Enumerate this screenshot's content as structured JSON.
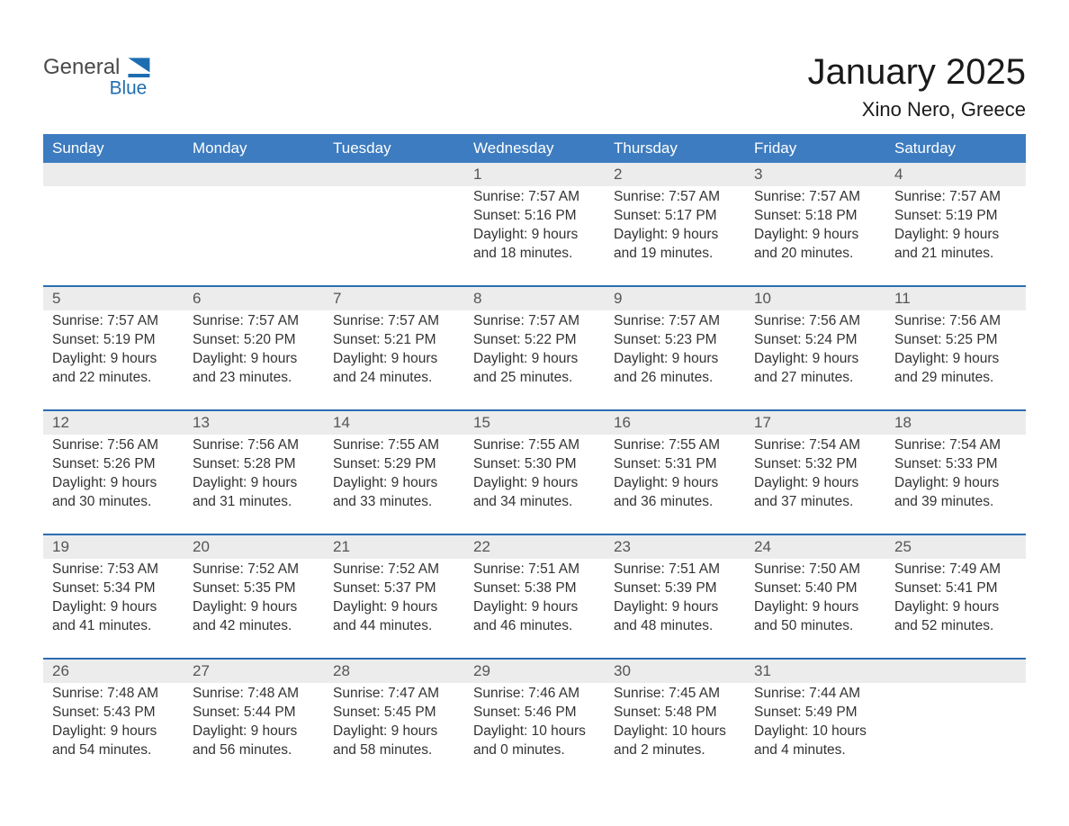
{
  "brand": {
    "line1": "General",
    "line2": "Blue"
  },
  "title": "January 2025",
  "location": "Xino Nero, Greece",
  "colors": {
    "header_blue": "#3d7cc0",
    "accent_blue": "#2b6db3",
    "date_row_bg": "#ececec",
    "logo_blue": "#1f6db1",
    "text": "#333333",
    "background": "#ffffff"
  },
  "typography": {
    "base_family": "Arial, Helvetica, sans-serif",
    "title_size_pt": 30,
    "location_size_pt": 16,
    "dow_size_pt": 13,
    "body_size_pt": 11.5
  },
  "layout": {
    "columns": 7,
    "weeks": 5,
    "first_day_column_index": 3
  },
  "daysOfWeek": [
    "Sunday",
    "Monday",
    "Tuesday",
    "Wednesday",
    "Thursday",
    "Friday",
    "Saturday"
  ],
  "weeks": [
    [
      null,
      null,
      null,
      {
        "date": "1",
        "sunrise": "Sunrise: 7:57 AM",
        "sunset": "Sunset: 5:16 PM",
        "day1": "Daylight: 9 hours",
        "day2": "and 18 minutes."
      },
      {
        "date": "2",
        "sunrise": "Sunrise: 7:57 AM",
        "sunset": "Sunset: 5:17 PM",
        "day1": "Daylight: 9 hours",
        "day2": "and 19 minutes."
      },
      {
        "date": "3",
        "sunrise": "Sunrise: 7:57 AM",
        "sunset": "Sunset: 5:18 PM",
        "day1": "Daylight: 9 hours",
        "day2": "and 20 minutes."
      },
      {
        "date": "4",
        "sunrise": "Sunrise: 7:57 AM",
        "sunset": "Sunset: 5:19 PM",
        "day1": "Daylight: 9 hours",
        "day2": "and 21 minutes."
      }
    ],
    [
      {
        "date": "5",
        "sunrise": "Sunrise: 7:57 AM",
        "sunset": "Sunset: 5:19 PM",
        "day1": "Daylight: 9 hours",
        "day2": "and 22 minutes."
      },
      {
        "date": "6",
        "sunrise": "Sunrise: 7:57 AM",
        "sunset": "Sunset: 5:20 PM",
        "day1": "Daylight: 9 hours",
        "day2": "and 23 minutes."
      },
      {
        "date": "7",
        "sunrise": "Sunrise: 7:57 AM",
        "sunset": "Sunset: 5:21 PM",
        "day1": "Daylight: 9 hours",
        "day2": "and 24 minutes."
      },
      {
        "date": "8",
        "sunrise": "Sunrise: 7:57 AM",
        "sunset": "Sunset: 5:22 PM",
        "day1": "Daylight: 9 hours",
        "day2": "and 25 minutes."
      },
      {
        "date": "9",
        "sunrise": "Sunrise: 7:57 AM",
        "sunset": "Sunset: 5:23 PM",
        "day1": "Daylight: 9 hours",
        "day2": "and 26 minutes."
      },
      {
        "date": "10",
        "sunrise": "Sunrise: 7:56 AM",
        "sunset": "Sunset: 5:24 PM",
        "day1": "Daylight: 9 hours",
        "day2": "and 27 minutes."
      },
      {
        "date": "11",
        "sunrise": "Sunrise: 7:56 AM",
        "sunset": "Sunset: 5:25 PM",
        "day1": "Daylight: 9 hours",
        "day2": "and 29 minutes."
      }
    ],
    [
      {
        "date": "12",
        "sunrise": "Sunrise: 7:56 AM",
        "sunset": "Sunset: 5:26 PM",
        "day1": "Daylight: 9 hours",
        "day2": "and 30 minutes."
      },
      {
        "date": "13",
        "sunrise": "Sunrise: 7:56 AM",
        "sunset": "Sunset: 5:28 PM",
        "day1": "Daylight: 9 hours",
        "day2": "and 31 minutes."
      },
      {
        "date": "14",
        "sunrise": "Sunrise: 7:55 AM",
        "sunset": "Sunset: 5:29 PM",
        "day1": "Daylight: 9 hours",
        "day2": "and 33 minutes."
      },
      {
        "date": "15",
        "sunrise": "Sunrise: 7:55 AM",
        "sunset": "Sunset: 5:30 PM",
        "day1": "Daylight: 9 hours",
        "day2": "and 34 minutes."
      },
      {
        "date": "16",
        "sunrise": "Sunrise: 7:55 AM",
        "sunset": "Sunset: 5:31 PM",
        "day1": "Daylight: 9 hours",
        "day2": "and 36 minutes."
      },
      {
        "date": "17",
        "sunrise": "Sunrise: 7:54 AM",
        "sunset": "Sunset: 5:32 PM",
        "day1": "Daylight: 9 hours",
        "day2": "and 37 minutes."
      },
      {
        "date": "18",
        "sunrise": "Sunrise: 7:54 AM",
        "sunset": "Sunset: 5:33 PM",
        "day1": "Daylight: 9 hours",
        "day2": "and 39 minutes."
      }
    ],
    [
      {
        "date": "19",
        "sunrise": "Sunrise: 7:53 AM",
        "sunset": "Sunset: 5:34 PM",
        "day1": "Daylight: 9 hours",
        "day2": "and 41 minutes."
      },
      {
        "date": "20",
        "sunrise": "Sunrise: 7:52 AM",
        "sunset": "Sunset: 5:35 PM",
        "day1": "Daylight: 9 hours",
        "day2": "and 42 minutes."
      },
      {
        "date": "21",
        "sunrise": "Sunrise: 7:52 AM",
        "sunset": "Sunset: 5:37 PM",
        "day1": "Daylight: 9 hours",
        "day2": "and 44 minutes."
      },
      {
        "date": "22",
        "sunrise": "Sunrise: 7:51 AM",
        "sunset": "Sunset: 5:38 PM",
        "day1": "Daylight: 9 hours",
        "day2": "and 46 minutes."
      },
      {
        "date": "23",
        "sunrise": "Sunrise: 7:51 AM",
        "sunset": "Sunset: 5:39 PM",
        "day1": "Daylight: 9 hours",
        "day2": "and 48 minutes."
      },
      {
        "date": "24",
        "sunrise": "Sunrise: 7:50 AM",
        "sunset": "Sunset: 5:40 PM",
        "day1": "Daylight: 9 hours",
        "day2": "and 50 minutes."
      },
      {
        "date": "25",
        "sunrise": "Sunrise: 7:49 AM",
        "sunset": "Sunset: 5:41 PM",
        "day1": "Daylight: 9 hours",
        "day2": "and 52 minutes."
      }
    ],
    [
      {
        "date": "26",
        "sunrise": "Sunrise: 7:48 AM",
        "sunset": "Sunset: 5:43 PM",
        "day1": "Daylight: 9 hours",
        "day2": "and 54 minutes."
      },
      {
        "date": "27",
        "sunrise": "Sunrise: 7:48 AM",
        "sunset": "Sunset: 5:44 PM",
        "day1": "Daylight: 9 hours",
        "day2": "and 56 minutes."
      },
      {
        "date": "28",
        "sunrise": "Sunrise: 7:47 AM",
        "sunset": "Sunset: 5:45 PM",
        "day1": "Daylight: 9 hours",
        "day2": "and 58 minutes."
      },
      {
        "date": "29",
        "sunrise": "Sunrise: 7:46 AM",
        "sunset": "Sunset: 5:46 PM",
        "day1": "Daylight: 10 hours",
        "day2": "and 0 minutes."
      },
      {
        "date": "30",
        "sunrise": "Sunrise: 7:45 AM",
        "sunset": "Sunset: 5:48 PM",
        "day1": "Daylight: 10 hours",
        "day2": "and 2 minutes."
      },
      {
        "date": "31",
        "sunrise": "Sunrise: 7:44 AM",
        "sunset": "Sunset: 5:49 PM",
        "day1": "Daylight: 10 hours",
        "day2": "and 4 minutes."
      },
      null
    ]
  ]
}
